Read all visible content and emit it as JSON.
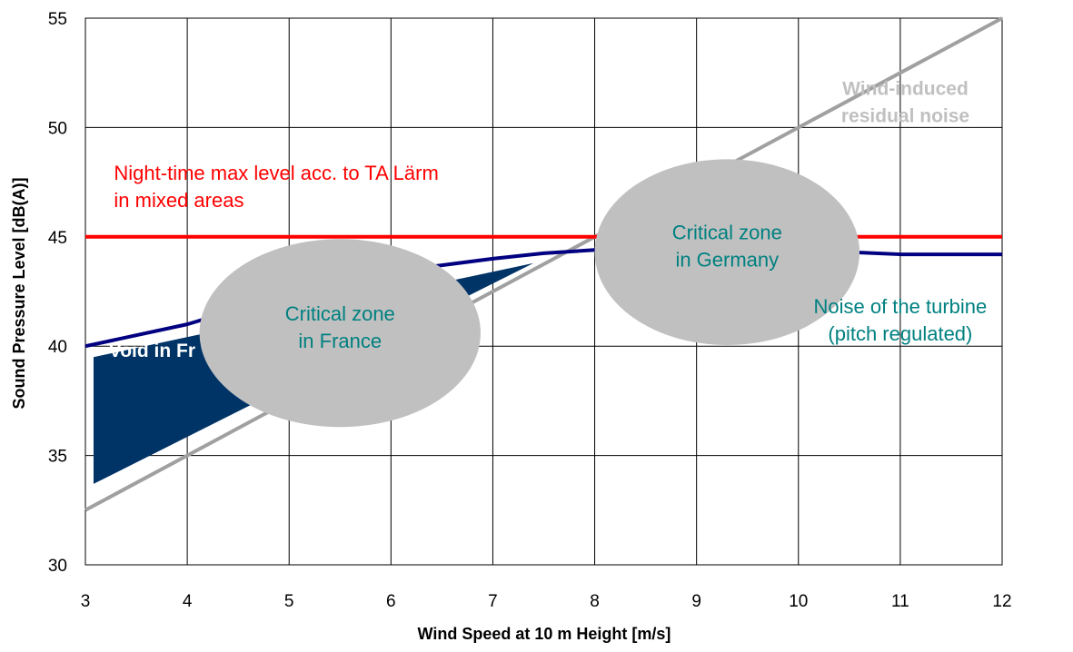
{
  "chart_data": {
    "type": "line",
    "xlabel": "Wind Speed at 10 m Height [m/s]",
    "ylabel": "Sound Pressure Level [dB(A)]",
    "xlim": [
      3,
      12
    ],
    "ylim": [
      30,
      55
    ],
    "xticks": [
      3,
      4,
      5,
      6,
      7,
      8,
      9,
      10,
      11,
      12
    ],
    "yticks": [
      30,
      35,
      40,
      45,
      50,
      55
    ],
    "grid": true,
    "legend": "none",
    "series": [
      {
        "name": "Night-time max level acc. to TA Lärm in mixed areas",
        "color": "#ff0000",
        "x": [
          3,
          12
        ],
        "y": [
          45,
          45
        ]
      },
      {
        "name": "Noise of the turbine (pitch regulated)",
        "color": "#000080",
        "x": [
          3,
          4,
          5,
          6,
          7,
          7.5,
          8,
          9,
          10,
          10.5,
          11,
          12
        ],
        "y": [
          40,
          41,
          42.4,
          43.4,
          44.0,
          44.25,
          44.4,
          44.5,
          44.4,
          44.3,
          44.2,
          44.2
        ]
      },
      {
        "name": "Wind-induced residual noise",
        "color": "#a0a0a0",
        "x": [
          3,
          12
        ],
        "y": [
          32.5,
          55
        ]
      }
    ],
    "regions": [
      {
        "name": "Void in France",
        "color": "#003366",
        "points": [
          [
            3.08,
            39.5
          ],
          [
            7.4,
            43.8
          ],
          [
            3.08,
            33.7
          ]
        ]
      }
    ],
    "zones": [
      {
        "label_lines": [
          "Critical zone",
          "in France"
        ],
        "cx": 5.5,
        "cy": 40.6,
        "rx": 1.38,
        "ry": 4.3
      },
      {
        "label_lines": [
          "Critical zone",
          "in Germany"
        ],
        "cx": 9.3,
        "cy": 44.3,
        "rx": 1.3,
        "ry": 4.25
      }
    ],
    "annotations": [
      {
        "id": "limit",
        "lines": [
          "Night-time max level acc. to TA Lärm",
          "in mixed areas"
        ],
        "color": "#ff0000",
        "x": 3.28,
        "y": 47.6
      },
      {
        "id": "residual",
        "lines": [
          "Wind-induced",
          "residual noise"
        ],
        "color": "#c0c0c0",
        "x": 11.05,
        "y": 51.5
      },
      {
        "id": "turbine",
        "lines": [
          "Noise of the turbine",
          "(pitch regulated)"
        ],
        "color": "#008080",
        "x": 11.0,
        "y": 41.5
      },
      {
        "id": "void",
        "lines": [
          "Void in Fr"
        ],
        "color": "#ffffff",
        "x": 3.23,
        "y": 39.5
      }
    ]
  }
}
